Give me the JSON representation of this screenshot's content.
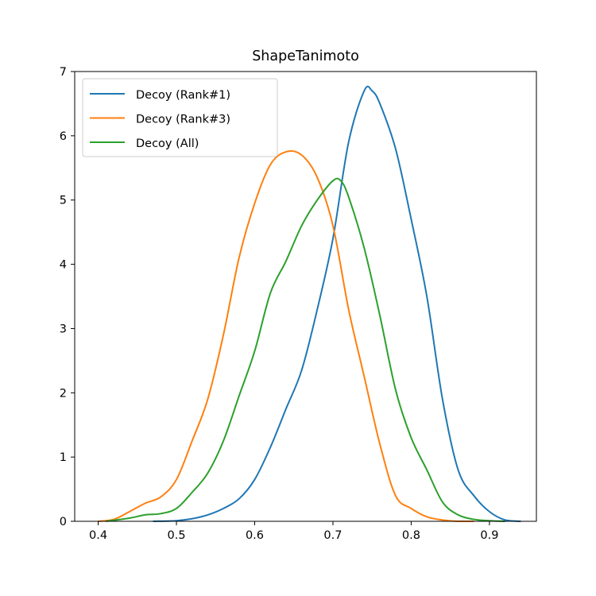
{
  "chart_data": {
    "type": "line",
    "title": "ShapeTanimoto",
    "xlabel": "",
    "ylabel": "",
    "xlim": [
      0.37,
      0.96
    ],
    "ylim": [
      0,
      7
    ],
    "xticks": [
      "0.4",
      "0.5",
      "0.6",
      "0.7",
      "0.8",
      "0.9"
    ],
    "yticks": [
      "0",
      "1",
      "2",
      "3",
      "4",
      "5",
      "6",
      "7"
    ],
    "grid": false,
    "legend_position": "upper-left",
    "series": [
      {
        "name": "Decoy (Rank#1)",
        "color": "#1f77b4",
        "x": [
          0.47,
          0.5,
          0.52,
          0.54,
          0.56,
          0.58,
          0.6,
          0.62,
          0.64,
          0.66,
          0.68,
          0.7,
          0.72,
          0.74,
          0.75,
          0.76,
          0.78,
          0.8,
          0.82,
          0.84,
          0.86,
          0.88,
          0.9,
          0.92,
          0.94
        ],
        "y": [
          0.0,
          0.01,
          0.04,
          0.1,
          0.2,
          0.35,
          0.65,
          1.15,
          1.75,
          2.35,
          3.3,
          4.4,
          5.9,
          6.7,
          6.7,
          6.5,
          5.8,
          4.7,
          3.5,
          1.9,
          0.8,
          0.4,
          0.15,
          0.02,
          0.0
        ]
      },
      {
        "name": "Decoy (Rank#3)",
        "color": "#ff7f0e",
        "x": [
          0.4,
          0.42,
          0.44,
          0.46,
          0.48,
          0.5,
          0.52,
          0.54,
          0.56,
          0.58,
          0.6,
          0.62,
          0.64,
          0.66,
          0.68,
          0.7,
          0.72,
          0.74,
          0.76,
          0.78,
          0.8,
          0.82,
          0.84,
          0.86,
          0.88
        ],
        "y": [
          0.0,
          0.03,
          0.15,
          0.28,
          0.38,
          0.65,
          1.25,
          1.9,
          2.9,
          4.1,
          4.95,
          5.55,
          5.75,
          5.7,
          5.35,
          4.6,
          3.3,
          2.25,
          1.2,
          0.4,
          0.2,
          0.07,
          0.02,
          0.0,
          0.0
        ]
      },
      {
        "name": "Decoy (All)",
        "color": "#2ca02c",
        "x": [
          0.41,
          0.44,
          0.46,
          0.48,
          0.5,
          0.52,
          0.54,
          0.56,
          0.58,
          0.6,
          0.62,
          0.64,
          0.66,
          0.68,
          0.7,
          0.71,
          0.72,
          0.74,
          0.76,
          0.78,
          0.8,
          0.82,
          0.84,
          0.86,
          0.88,
          0.9,
          0.92
        ],
        "y": [
          0.0,
          0.05,
          0.1,
          0.12,
          0.2,
          0.45,
          0.75,
          1.25,
          1.95,
          2.65,
          3.55,
          4.05,
          4.6,
          5.0,
          5.3,
          5.3,
          5.05,
          4.25,
          3.2,
          2.05,
          1.3,
          0.8,
          0.3,
          0.1,
          0.03,
          0.01,
          0.0
        ]
      }
    ]
  }
}
